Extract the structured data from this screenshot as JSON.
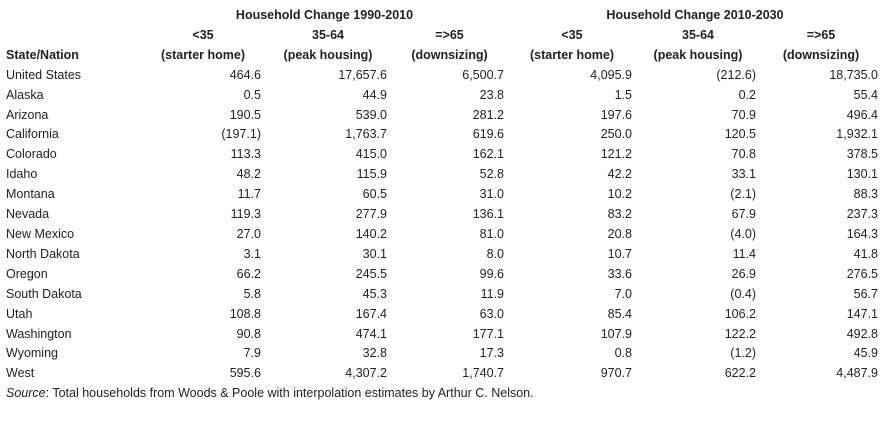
{
  "header": {
    "group_1990": "Household Change 1990-2010",
    "group_2010": "Household Change 2010-2030",
    "state_label": "State/Nation",
    "columns": [
      {
        "age": "<35",
        "desc": "(starter home)"
      },
      {
        "age": "35-64",
        "desc": "(peak housing)"
      },
      {
        "age": "=>65",
        "desc": "(downsizing)"
      },
      {
        "age": "<35",
        "desc": "(starter home)"
      },
      {
        "age": "35-64",
        "desc": "(peak housing)"
      },
      {
        "age": "=>65",
        "desc": "(downsizing)"
      }
    ]
  },
  "rows": [
    {
      "name": "United States",
      "values": [
        "464.6",
        "17,657.6",
        "6,500.7",
        "4,095.9",
        "(212.6)",
        "18,735.0"
      ]
    },
    {
      "name": "Alaska",
      "values": [
        "0.5",
        "44.9",
        "23.8",
        "1.5",
        "0.2",
        "55.4"
      ]
    },
    {
      "name": "Arizona",
      "values": [
        "190.5",
        "539.0",
        "281.2",
        "197.6",
        "70.9",
        "496.4"
      ]
    },
    {
      "name": "California",
      "values": [
        "(197.1)",
        "1,763.7",
        "619.6",
        "250.0",
        "120.5",
        "1,932.1"
      ]
    },
    {
      "name": "Colorado",
      "values": [
        "113.3",
        "415.0",
        "162.1",
        "121.2",
        "70.8",
        "378.5"
      ]
    },
    {
      "name": "Idaho",
      "values": [
        "48.2",
        "115.9",
        "52.8",
        "42.2",
        "33.1",
        "130.1"
      ]
    },
    {
      "name": "Montana",
      "values": [
        "11.7",
        "60.5",
        "31.0",
        "10.2",
        "(2.1)",
        "88.3"
      ]
    },
    {
      "name": "Nevada",
      "values": [
        "119.3",
        "277.9",
        "136.1",
        "83.2",
        "67.9",
        "237.3"
      ]
    },
    {
      "name": "New Mexico",
      "values": [
        "27.0",
        "140.2",
        "81.0",
        "20.8",
        "(4.0)",
        "164.3"
      ]
    },
    {
      "name": "North Dakota",
      "values": [
        "3.1",
        "30.1",
        "8.0",
        "10.7",
        "11.4",
        "41.8"
      ]
    },
    {
      "name": "Oregon",
      "values": [
        "66.2",
        "245.5",
        "99.6",
        "33.6",
        "26.9",
        "276.5"
      ]
    },
    {
      "name": "South Dakota",
      "values": [
        "5.8",
        "45.3",
        "11.9",
        "7.0",
        "(0.4)",
        "56.7"
      ]
    },
    {
      "name": "Utah",
      "values": [
        "108.8",
        "167.4",
        "63.0",
        "85.4",
        "106.2",
        "147.1"
      ]
    },
    {
      "name": "Washington",
      "values": [
        "90.8",
        "474.1",
        "177.1",
        "107.9",
        "122.2",
        "492.8"
      ]
    },
    {
      "name": "Wyoming",
      "values": [
        "7.9",
        "32.8",
        "17.3",
        "0.8",
        "(1.2)",
        "45.9"
      ]
    },
    {
      "name": "West",
      "values": [
        "595.6",
        "4,307.2",
        "1,740.7",
        "970.7",
        "622.2",
        "4,487.9"
      ]
    }
  ],
  "source": {
    "label": "Source",
    "text": ": Total households from Woods & Poole with interpolation estimates by Arthur C. Nelson."
  }
}
